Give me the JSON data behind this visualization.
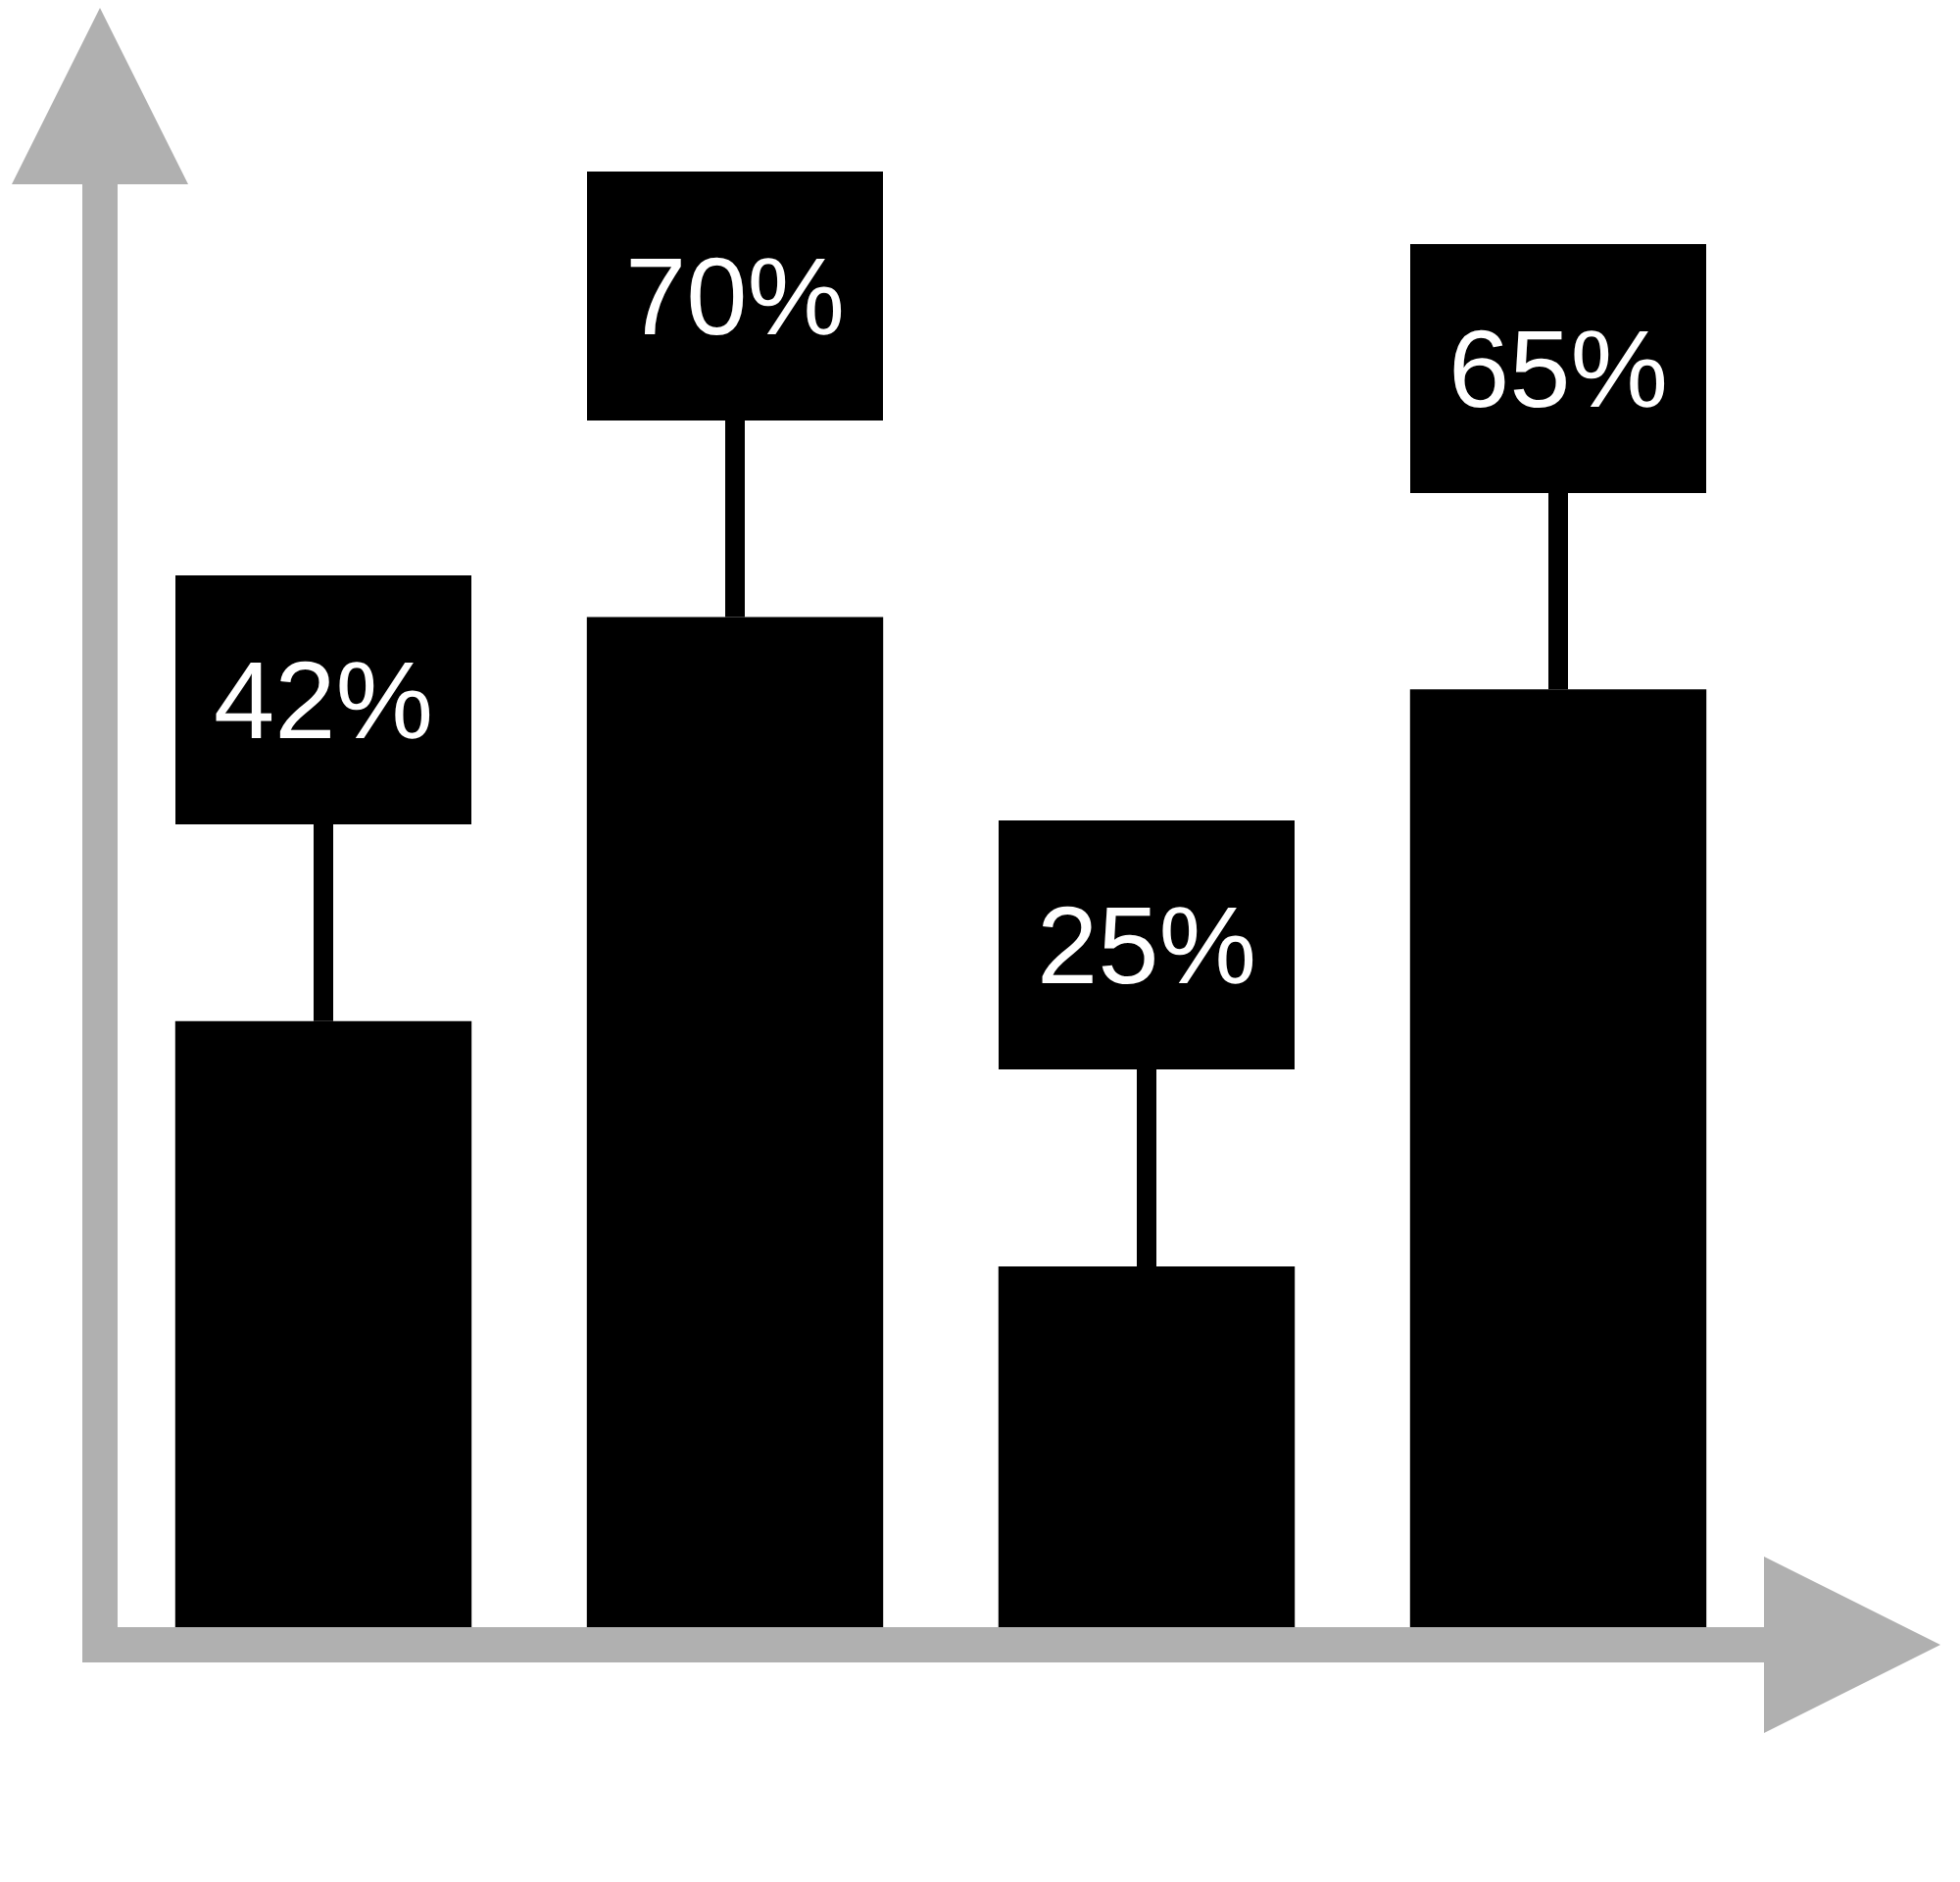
{
  "chart_data": {
    "type": "bar",
    "categories": [
      null,
      null,
      null,
      null
    ],
    "values": [
      42,
      70,
      25,
      65
    ],
    "value_labels": [
      "42%",
      "70%",
      "25%",
      "65%"
    ],
    "color": "#000000",
    "ylim": [
      0,
      100
    ],
    "tick_labels": false
  }
}
